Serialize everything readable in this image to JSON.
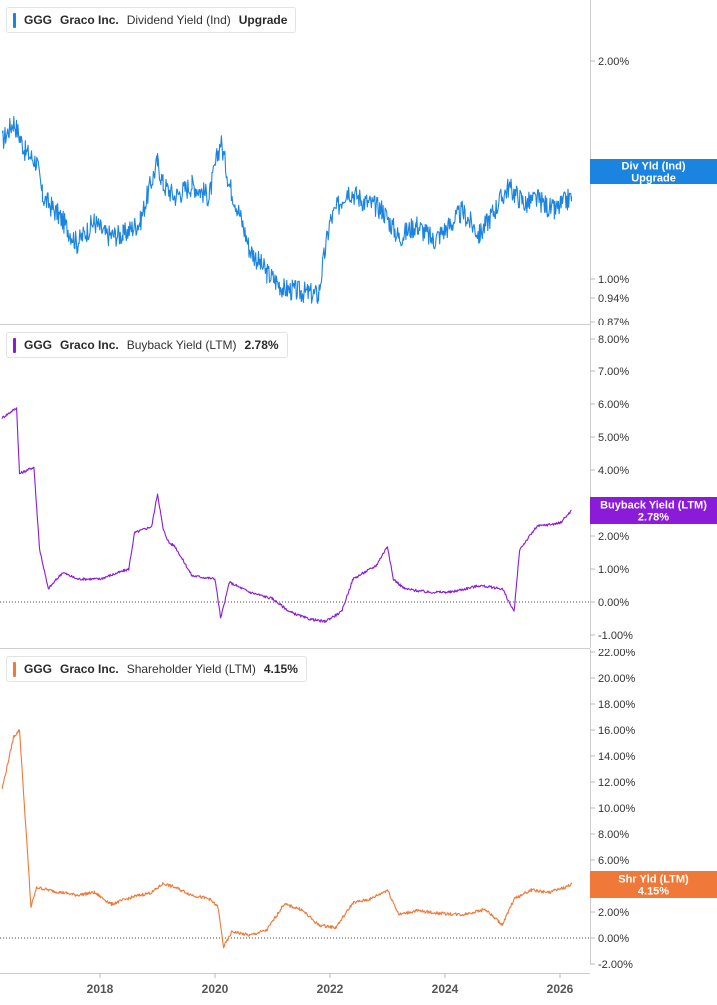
{
  "company": {
    "ticker": "GGG",
    "name": "Graco Inc."
  },
  "panels": [
    {
      "metric": "Dividend Yield (Ind)",
      "legend_value": "Upgrade",
      "color": "#1a84e0",
      "badge_line1": "Div Yld (Ind)",
      "badge_line2": "Upgrade",
      "ticks": [
        "2.00%",
        "1.00%",
        "0.94%",
        "0.87%"
      ]
    },
    {
      "metric": "Buyback Yield (LTM)",
      "legend_value": "2.78%",
      "color": "#8a1bd9",
      "badge_line1": "Buyback Yield (LTM)",
      "badge_line2": "2.78%",
      "ticks": [
        "8.00%",
        "7.00%",
        "6.00%",
        "5.00%",
        "4.00%",
        "2.00%",
        "1.00%",
        "0.00%",
        "-1.00%"
      ]
    },
    {
      "metric": "Shareholder Yield (LTM)",
      "legend_value": "4.15%",
      "color": "#f07838",
      "badge_line1": "Shr Yld (LTM)",
      "badge_line2": "4.15%",
      "ticks": [
        "22.00%",
        "20.00%",
        "18.00%",
        "16.00%",
        "14.00%",
        "12.00%",
        "10.00%",
        "8.00%",
        "6.00%",
        "4.00%",
        "2.00%",
        "0.00%",
        "-2.00%"
      ]
    }
  ],
  "x_axis": {
    "ticks": [
      "2018",
      "2020",
      "2022",
      "2024",
      "2026"
    ]
  },
  "chart_data": [
    {
      "type": "line",
      "title": "GGG Graco Inc. Dividend Yield (Ind)",
      "scale": "log",
      "ylim": [
        0.87,
        2.3
      ],
      "series": [
        {
          "name": "Dividend Yield (Ind)",
          "x": [
            2016.3,
            2016.5,
            2016.7,
            2016.9,
            2017.0,
            2017.3,
            2017.6,
            2017.9,
            2018.1,
            2018.4,
            2018.7,
            2019.0,
            2019.1,
            2019.3,
            2019.6,
            2019.9,
            2020.1,
            2020.25,
            2020.4,
            2020.6,
            2020.9,
            2021.2,
            2021.5,
            2021.8,
            2022.0,
            2022.3,
            2022.6,
            2022.9,
            2023.2,
            2023.5,
            2023.8,
            2024.1,
            2024.3,
            2024.6,
            2024.9,
            2025.1,
            2025.4,
            2025.6,
            2025.9,
            2026.2
          ],
          "y": [
            1.55,
            1.65,
            1.5,
            1.45,
            1.3,
            1.22,
            1.12,
            1.2,
            1.15,
            1.15,
            1.2,
            1.45,
            1.35,
            1.3,
            1.35,
            1.3,
            1.55,
            1.35,
            1.25,
            1.1,
            1.02,
            0.97,
            0.96,
            0.95,
            1.2,
            1.33,
            1.28,
            1.25,
            1.14,
            1.19,
            1.13,
            1.19,
            1.24,
            1.15,
            1.26,
            1.34,
            1.27,
            1.29,
            1.24,
            1.3
          ]
        }
      ]
    },
    {
      "type": "line",
      "title": "GGG Graco Inc. Buyback Yield (LTM)",
      "ylim": [
        -1.0,
        8.0
      ],
      "series": [
        {
          "name": "Buyback Yield (LTM)",
          "x": [
            2016.3,
            2016.55,
            2016.6,
            2016.85,
            2016.95,
            2017.1,
            2017.35,
            2017.6,
            2018.0,
            2018.5,
            2018.6,
            2018.9,
            2019.0,
            2019.1,
            2019.2,
            2019.3,
            2019.6,
            2020.0,
            2020.1,
            2020.25,
            2020.6,
            2021.0,
            2021.3,
            2021.6,
            2021.9,
            2022.2,
            2022.4,
            2022.8,
            2023.0,
            2023.1,
            2023.3,
            2023.7,
            2024.1,
            2024.6,
            2025.0,
            2025.2,
            2025.3,
            2025.6,
            2026.0,
            2026.2
          ],
          "y": [
            5.6,
            5.9,
            3.9,
            4.1,
            1.6,
            0.4,
            0.9,
            0.7,
            0.7,
            1.0,
            2.1,
            2.3,
            3.3,
            2.2,
            1.8,
            1.7,
            0.8,
            0.7,
            -0.5,
            0.6,
            0.3,
            0.1,
            -0.3,
            -0.5,
            -0.6,
            -0.3,
            0.7,
            1.1,
            1.7,
            0.7,
            0.4,
            0.3,
            0.3,
            0.5,
            0.4,
            -0.3,
            1.6,
            2.3,
            2.4,
            2.78
          ]
        }
      ]
    },
    {
      "type": "line",
      "title": "GGG Graco Inc. Shareholder Yield (LTM)",
      "ylim": [
        -2.0,
        22.0
      ],
      "series": [
        {
          "name": "Shareholder Yield (LTM)",
          "x": [
            2016.3,
            2016.5,
            2016.6,
            2016.8,
            2016.9,
            2017.2,
            2017.6,
            2017.9,
            2018.2,
            2018.6,
            2018.9,
            2019.1,
            2019.3,
            2019.6,
            2019.9,
            2020.05,
            2020.15,
            2020.3,
            2020.6,
            2020.9,
            2021.2,
            2021.5,
            2021.8,
            2022.1,
            2022.4,
            2022.7,
            2023.0,
            2023.2,
            2023.5,
            2023.9,
            2024.3,
            2024.7,
            2025.0,
            2025.2,
            2025.5,
            2025.8,
            2026.1,
            2026.2
          ],
          "y": [
            11.5,
            15.5,
            16.0,
            2.4,
            3.9,
            3.6,
            3.3,
            3.5,
            2.6,
            3.2,
            3.5,
            4.2,
            3.9,
            3.3,
            3.0,
            2.4,
            -0.7,
            0.5,
            0.2,
            0.6,
            2.6,
            2.2,
            1.0,
            0.8,
            2.7,
            3.0,
            3.7,
            1.8,
            2.1,
            1.9,
            1.8,
            2.2,
            1.0,
            3.0,
            3.7,
            3.5,
            3.9,
            4.15
          ]
        }
      ]
    }
  ]
}
